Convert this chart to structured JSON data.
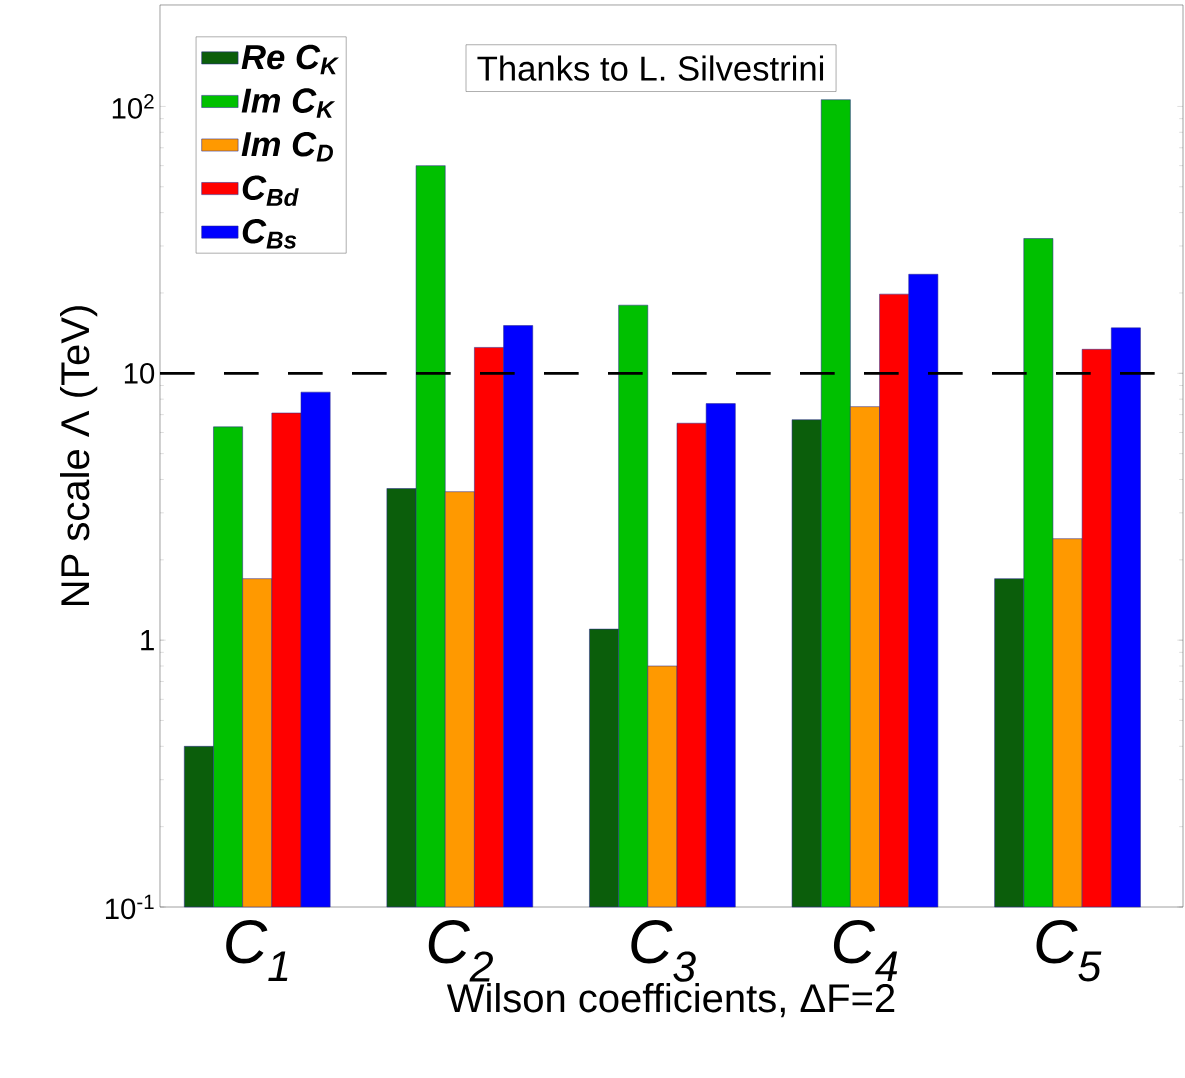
{
  "chart_data": {
    "type": "bar",
    "xlabel": "Wilson coefficients, ΔF=2",
    "ylabel": "NP scale Λ (TeV)",
    "categories": [
      "C$_{1}$",
      "C$_{2}$",
      "C$_{3}$",
      "C$_{4}$",
      "C$_{5}$"
    ],
    "series": [
      {
        "name": "Re C$_{K}$",
        "color": "#0b5e0b",
        "values": [
          0.4,
          3.7,
          1.1,
          6.7,
          1.7
        ]
      },
      {
        "name": "Im C$_{K}$",
        "color": "#00c000",
        "values": [
          6.3,
          60,
          18,
          106,
          32
        ]
      },
      {
        "name": "Im C$_{D}$",
        "color": "#ff9900",
        "values": [
          1.7,
          3.6,
          0.8,
          7.5,
          2.4
        ]
      },
      {
        "name": "C$_{Bd}$",
        "color": "#ff0000",
        "values": [
          7.1,
          12.5,
          6.5,
          19.8,
          12.3
        ]
      },
      {
        "name": "C$_{Bs}$",
        "color": "#0000ff",
        "values": [
          8.5,
          15.1,
          7.7,
          23.5,
          14.8
        ]
      }
    ],
    "log": "y",
    "ylim": [
      0.1,
      240
    ],
    "yticks": [
      {
        "value": 0.1,
        "label": "10$^{-1}$"
      },
      1,
      10,
      {
        "value": 100,
        "label": "10$^{2}$"
      }
    ],
    "ref_lines": [
      {
        "axis": "y",
        "value": 10,
        "color": "#000000",
        "line_style": "dashed"
      }
    ],
    "legend": "top left",
    "annotations": [
      "Thanks to L. Silvestrini"
    ]
  }
}
